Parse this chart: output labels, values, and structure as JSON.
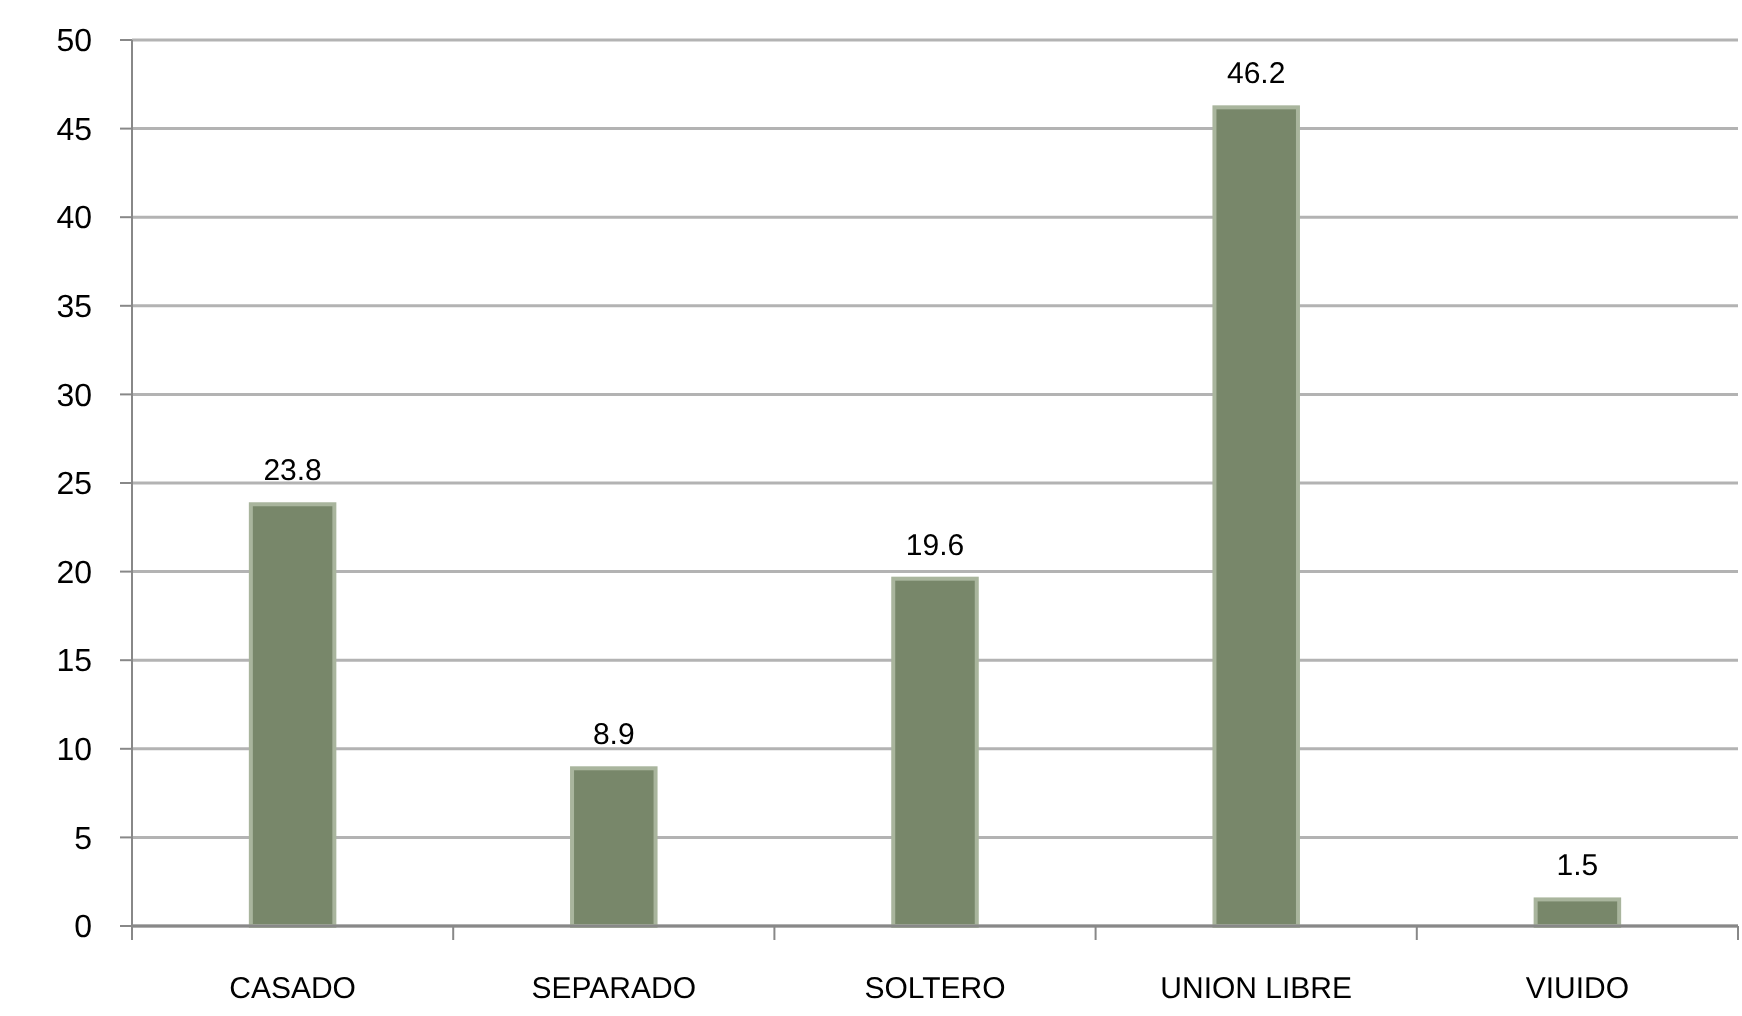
{
  "chart_data": {
    "type": "bar",
    "categories": [
      "CASADO",
      "SEPARADO",
      "SOLTERO",
      "UNION LIBRE",
      "VIUIDO"
    ],
    "values": [
      23.8,
      8.9,
      19.6,
      46.2,
      1.5
    ],
    "color": "#78876a",
    "ylim": [
      0,
      50
    ],
    "yticks": [
      0,
      5,
      10,
      15,
      20,
      25,
      30,
      35,
      40,
      45,
      50
    ],
    "grid": "y",
    "data_labels": true
  }
}
